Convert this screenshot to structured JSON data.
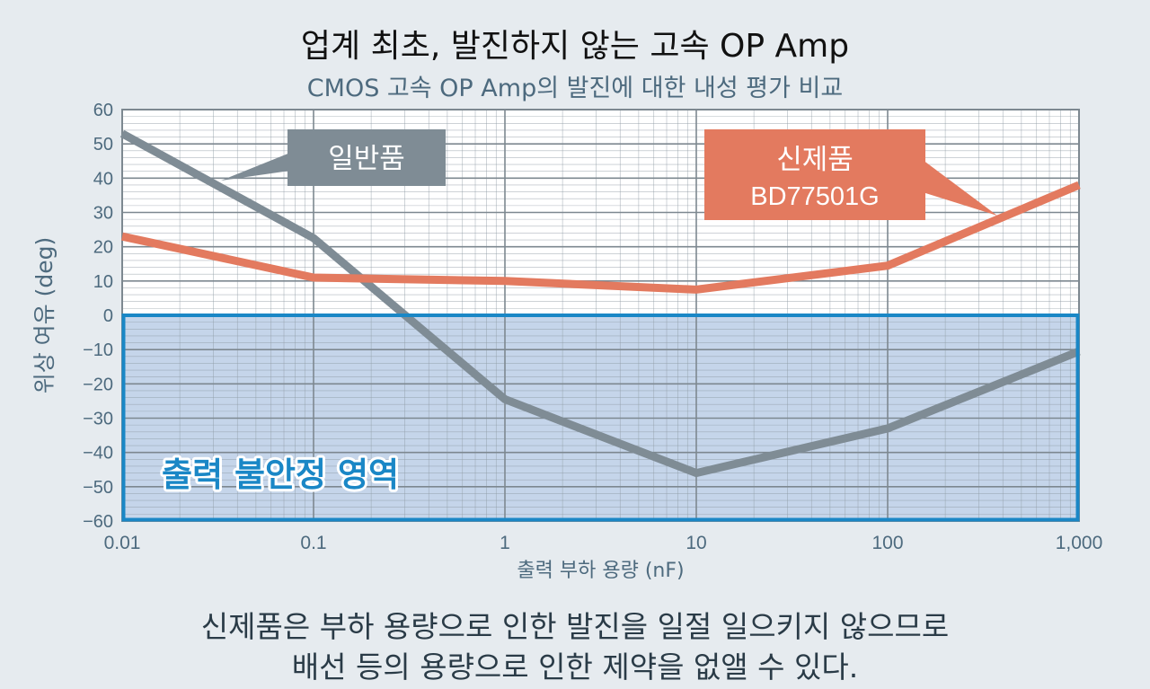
{
  "title": "업계 최초, 발진하지 않는 고속 OP Amp",
  "subtitle": "CMOS 고속 OP Amp의 발진에 대한 내성 평가 비교",
  "footer": {
    "line1": "신제품은 부하 용량으로 인한 발진을 일절 일으키지 않으므로",
    "line2": "배선 등의 용량으로 인한 제약을 없앨 수 있다."
  },
  "colors": {
    "background": "#e6ebef",
    "standard": "#7f8c95",
    "new": "#e37a5f",
    "unstable_fill": "#c5d5ea",
    "unstable_border": "#1a87c6",
    "unstable_text": "#1a87c6",
    "axis_text": "#4d6a7e"
  },
  "chart_data": {
    "type": "line",
    "x_scale": "log",
    "xlabel": "출력 부하 용량 (nF)",
    "ylabel": "위상 여유 (deg)",
    "xlim": [
      0.01,
      1000
    ],
    "ylim": [
      -60,
      60
    ],
    "x_ticks": [
      0.01,
      0.1,
      1,
      10,
      100,
      1000
    ],
    "x_tick_labels": [
      "0.01",
      "0.1",
      "1",
      "10",
      "100",
      "1,000"
    ],
    "y_ticks": [
      60,
      50,
      40,
      30,
      20,
      10,
      0,
      -10,
      -20,
      -30,
      -40,
      -50,
      -60
    ],
    "y_tick_labels": [
      "60",
      "50",
      "40",
      "30",
      "20",
      "10",
      "0",
      "−10",
      "−20",
      "−30",
      "−40",
      "−50",
      "−60"
    ],
    "grid": true,
    "series": [
      {
        "key": "standard",
        "x": [
          0.01,
          0.1,
          1,
          10,
          100,
          1000
        ],
        "y": [
          53,
          22.5,
          -24.5,
          -46,
          -33,
          -10.5
        ]
      },
      {
        "key": "new",
        "x": [
          0.01,
          0.1,
          1,
          10,
          100,
          1000
        ],
        "y": [
          23,
          11,
          10,
          7.5,
          14.5,
          38
        ]
      }
    ],
    "annotations": [
      {
        "key": "standard",
        "lines": [
          "일반품"
        ]
      },
      {
        "key": "new",
        "lines": [
          "신제품",
          "BD77501G"
        ]
      }
    ],
    "region": {
      "y_from": -60,
      "y_to": 0,
      "label": "출력 불안정 영역"
    }
  }
}
